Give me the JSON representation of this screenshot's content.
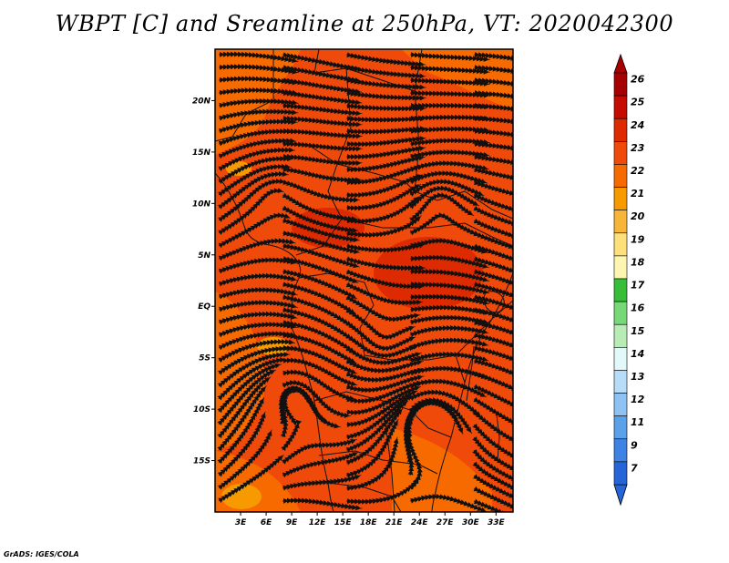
{
  "title": "WBPT [C] and Sreamline at 250hPa, VT: 2020042300",
  "credit": "GrADS: IGES/COLA",
  "map": {
    "lat_labels": [
      "20N",
      "15N",
      "10N",
      "5N",
      "EQ",
      "5S",
      "10S",
      "15S"
    ],
    "lat_values": [
      20,
      15,
      10,
      5,
      0,
      -5,
      -10,
      -15
    ],
    "lon_labels": [
      "3E",
      "6E",
      "9E",
      "12E",
      "15E",
      "18E",
      "21E",
      "24E",
      "27E",
      "30E",
      "33E"
    ],
    "lon_values": [
      3,
      6,
      9,
      12,
      15,
      18,
      21,
      24,
      27,
      30,
      33
    ],
    "lon_range": [
      0,
      35
    ],
    "lat_range": [
      -20,
      25
    ],
    "background_color": "#f04a0a"
  },
  "colorbar": {
    "labels": [
      "26",
      "25",
      "24",
      "23",
      "22",
      "21",
      "20",
      "19",
      "18",
      "17",
      "16",
      "15",
      "14",
      "13",
      "12",
      "11",
      "9",
      "7"
    ],
    "colors": [
      "#a60000",
      "#c40c00",
      "#dd2a00",
      "#f04a0a",
      "#f76a00",
      "#f79a00",
      "#f7b63a",
      "#fde07a",
      "#fdf5b0",
      "#37bd37",
      "#77d877",
      "#b8ecb4",
      "#e3f8f8",
      "#b7dcf8",
      "#8ec2f3",
      "#5aa1ea",
      "#3e82e3",
      "#2565d8"
    ],
    "top_arrow_color": "#a60000",
    "bottom_arrow_color": "#2565d8"
  }
}
